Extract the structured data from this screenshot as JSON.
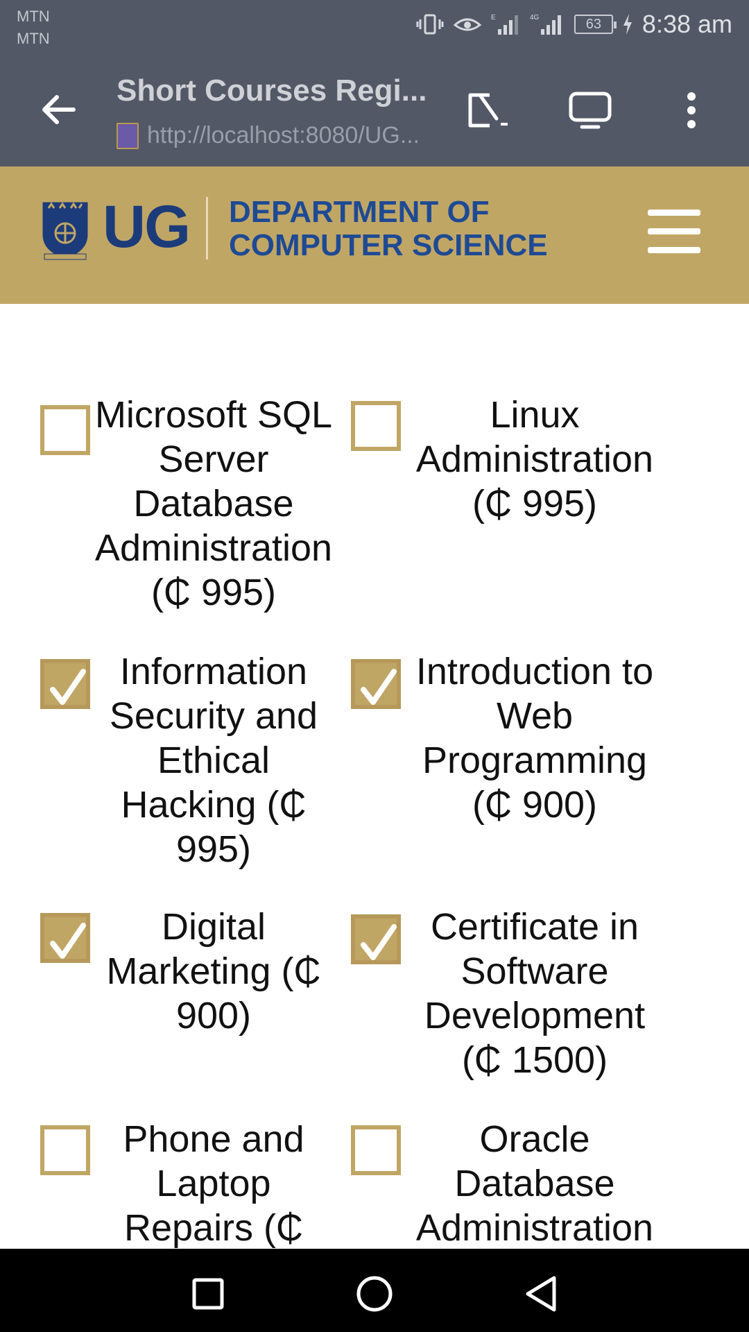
{
  "status_bar": {
    "carrier_1": "MTN",
    "carrier_2": "MTN",
    "battery": "63",
    "time": "8:38 am"
  },
  "toolbar": {
    "page_title": "Short Courses Regi...",
    "url": "http://localhost:8080/UG..."
  },
  "header": {
    "logo_text": "UG",
    "department_line1": "DEPARTMENT OF",
    "department_line2": "COMPUTER SCIENCE"
  },
  "courses": [
    {
      "label": "Microsoft SQL Server Database Administration (₵ 995)",
      "checked": false
    },
    {
      "label": "Linux Administration (₵ 995)",
      "checked": false
    },
    {
      "label": "Information Security and Ethical Hacking (₵ 995)",
      "checked": true
    },
    {
      "label": "Introduction to Web Programming (₵ 900)",
      "checked": true
    },
    {
      "label": "Digital Marketing (₵ 900)",
      "checked": true
    },
    {
      "label": "Certificate in Software Development (₵ 1500)",
      "checked": true
    },
    {
      "label": "Phone and Laptop Repairs (₵",
      "checked": false
    },
    {
      "label": "Oracle Database Administration",
      "checked": false
    }
  ],
  "colors": {
    "brand_gold": "#c0a665",
    "brand_blue": "#1c3b7a",
    "toolbar_bg": "#525866"
  }
}
